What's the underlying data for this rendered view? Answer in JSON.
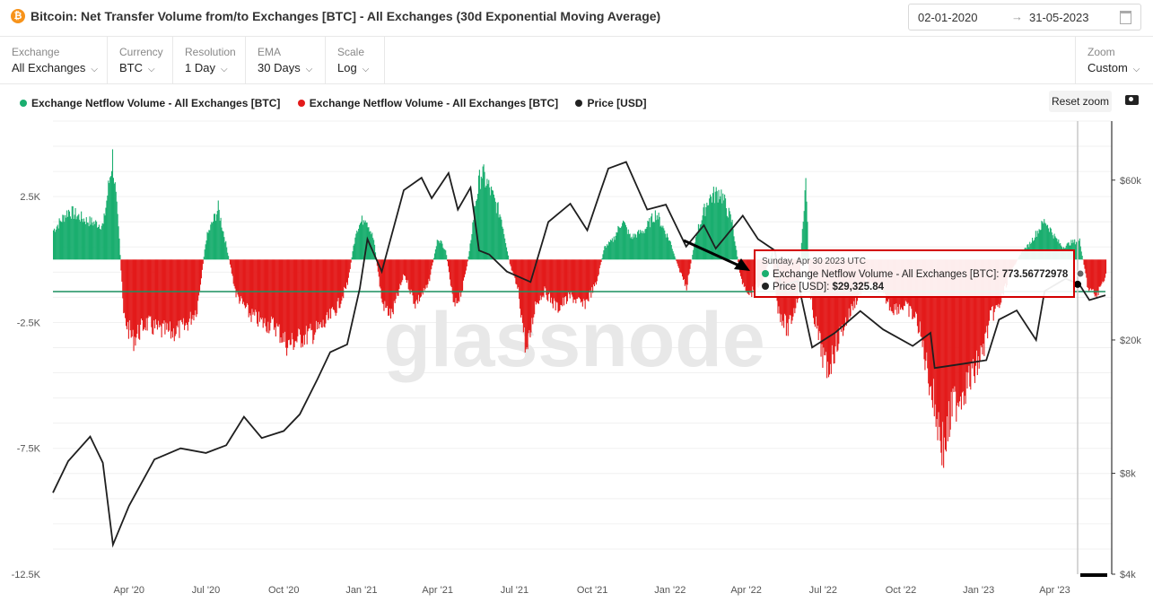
{
  "header": {
    "title": "Bitcoin: Net Transfer Volume from/to Exchanges [BTC] - All Exchanges (30d Exponential Moving Average)",
    "btc_glyph": "₿",
    "date_from": "02-01-2020",
    "date_to": "31-05-2023",
    "arrow": "→"
  },
  "controls": {
    "exchange": {
      "label": "Exchange",
      "value": "All Exchanges"
    },
    "currency": {
      "label": "Currency",
      "value": "BTC"
    },
    "resolution": {
      "label": "Resolution",
      "value": "1 Day"
    },
    "ema": {
      "label": "EMA",
      "value": "30 Days"
    },
    "scale": {
      "label": "Scale",
      "value": "Log"
    },
    "zoom": {
      "label": "Zoom",
      "value": "Custom"
    },
    "chevron": "⌵"
  },
  "legend": [
    {
      "label": "Exchange Netflow Volume - All Exchanges [BTC]",
      "color": "#1aae6f"
    },
    {
      "label": "Exchange Netflow Volume - All Exchanges [BTC]",
      "color": "#e31a1a"
    },
    {
      "label": "Price [USD]",
      "color": "#222222"
    }
  ],
  "toolbar": {
    "reset_zoom": "Reset zoom",
    "camera_icon": "camera-icon"
  },
  "watermark": "glassnode",
  "tooltip": {
    "date": "Sunday, Apr 30 2023 UTC",
    "netflow_label": "Exchange Netflow Volume - All Exchanges [BTC]:",
    "netflow_value": "773.56772978",
    "price_label": "Price [USD]:",
    "price_value": "$29,325.84",
    "border_color": "#d30000"
  },
  "chart_data": {
    "type": "bar",
    "x_ticks": [
      "Apr '20",
      "Jul '20",
      "Oct '20",
      "Jan '21",
      "Apr '21",
      "Jul '21",
      "Oct '21",
      "Jan '22",
      "Apr '22",
      "Jul '22",
      "Oct '22",
      "Jan '23",
      "Apr '23"
    ],
    "left_axis": {
      "ticks": [
        "2.5K",
        "-2.5K",
        "-7.5K",
        "-12.5K"
      ],
      "tick_values": [
        2500,
        -2500,
        -7500,
        -12500
      ],
      "range": [
        -12500,
        5500
      ]
    },
    "right_axis": {
      "scale": "log",
      "ticks": [
        "$60k",
        "$20k",
        "$8k",
        "$4k"
      ],
      "tick_values": [
        60000,
        20000,
        8000,
        4000
      ],
      "range": [
        4000,
        90000
      ]
    },
    "netflow": {
      "unit": "BTC",
      "positive_color": "#1aae6f",
      "negative_color": "#e31a1a",
      "points": [
        [
          "2020-01-02",
          1200
        ],
        [
          "2020-01-20",
          2000
        ],
        [
          "2020-02-10",
          1600
        ],
        [
          "2020-03-01",
          1400
        ],
        [
          "2020-03-12",
          4200
        ],
        [
          "2020-03-20",
          800
        ],
        [
          "2020-03-25",
          -2300
        ],
        [
          "2020-04-05",
          -3300
        ],
        [
          "2020-04-20",
          -2600
        ],
        [
          "2020-05-05",
          -2900
        ],
        [
          "2020-05-20",
          -3000
        ],
        [
          "2020-06-05",
          -2800
        ],
        [
          "2020-06-20",
          -2000
        ],
        [
          "2020-07-01",
          900
        ],
        [
          "2020-07-15",
          2100
        ],
        [
          "2020-07-25",
          500
        ],
        [
          "2020-08-05",
          -1400
        ],
        [
          "2020-08-20",
          -2200
        ],
        [
          "2020-09-05",
          -2600
        ],
        [
          "2020-09-20",
          -2700
        ],
        [
          "2020-10-05",
          -3500
        ],
        [
          "2020-10-20",
          -3200
        ],
        [
          "2020-11-05",
          -3000
        ],
        [
          "2020-11-20",
          -2600
        ],
        [
          "2020-12-05",
          -1800
        ],
        [
          "2020-12-15",
          -1000
        ],
        [
          "2020-12-25",
          1200
        ],
        [
          "2021-01-05",
          1800
        ],
        [
          "2021-01-15",
          800
        ],
        [
          "2021-01-25",
          -1800
        ],
        [
          "2021-02-05",
          -2300
        ],
        [
          "2021-02-20",
          -600
        ],
        [
          "2021-03-05",
          -1800
        ],
        [
          "2021-03-20",
          -1100
        ],
        [
          "2021-04-01",
          900
        ],
        [
          "2021-04-10",
          400
        ],
        [
          "2021-04-20",
          -2000
        ],
        [
          "2021-04-30",
          -1200
        ],
        [
          "2021-05-08",
          300
        ],
        [
          "2021-05-15",
          2300
        ],
        [
          "2021-05-22",
          3600
        ],
        [
          "2021-06-01",
          2900
        ],
        [
          "2021-06-15",
          1700
        ],
        [
          "2021-06-25",
          -200
        ],
        [
          "2021-07-05",
          -1300
        ],
        [
          "2021-07-15",
          -3900
        ],
        [
          "2021-07-25",
          -1800
        ],
        [
          "2021-08-05",
          -1300
        ],
        [
          "2021-08-20",
          -2000
        ],
        [
          "2021-09-05",
          -1500
        ],
        [
          "2021-09-20",
          -1900
        ],
        [
          "2021-10-05",
          -1000
        ],
        [
          "2021-10-15",
          500
        ],
        [
          "2021-10-25",
          800
        ],
        [
          "2021-11-05",
          1600
        ],
        [
          "2021-11-15",
          900
        ],
        [
          "2021-12-01",
          1200
        ],
        [
          "2021-12-15",
          1900
        ],
        [
          "2022-01-01",
          700
        ],
        [
          "2022-01-10",
          -300
        ],
        [
          "2022-01-20",
          -1100
        ],
        [
          "2022-02-01",
          1100
        ],
        [
          "2022-02-15",
          2500
        ],
        [
          "2022-03-01",
          2800
        ],
        [
          "2022-03-15",
          1500
        ],
        [
          "2022-03-25",
          -800
        ],
        [
          "2022-04-05",
          -1400
        ],
        [
          "2022-04-20",
          -900
        ],
        [
          "2022-05-01",
          300
        ],
        [
          "2022-05-08",
          -2000
        ],
        [
          "2022-05-20",
          -2900
        ],
        [
          "2022-06-01",
          -1500
        ],
        [
          "2022-06-10",
          3300
        ],
        [
          "2022-06-15",
          -1500
        ],
        [
          "2022-06-25",
          -3200
        ],
        [
          "2022-07-05",
          -4600
        ],
        [
          "2022-07-20",
          -3100
        ],
        [
          "2022-08-05",
          -1900
        ],
        [
          "2022-08-20",
          -900
        ],
        [
          "2022-09-05",
          -1200
        ],
        [
          "2022-09-20",
          -2000
        ],
        [
          "2022-10-05",
          -1900
        ],
        [
          "2022-10-20",
          -2500
        ],
        [
          "2022-11-01",
          -4500
        ],
        [
          "2022-11-10",
          -6100
        ],
        [
          "2022-11-20",
          -7800
        ],
        [
          "2022-12-01",
          -6000
        ],
        [
          "2022-12-15",
          -5200
        ],
        [
          "2022-12-25",
          -4700
        ],
        [
          "2023-01-05",
          -3800
        ],
        [
          "2023-01-15",
          -2300
        ],
        [
          "2023-01-25",
          -1900
        ],
        [
          "2023-02-05",
          -700
        ],
        [
          "2023-02-20",
          300
        ],
        [
          "2023-03-01",
          600
        ],
        [
          "2023-03-10",
          1100
        ],
        [
          "2023-03-20",
          1600
        ],
        [
          "2023-04-01",
          900
        ],
        [
          "2023-04-10",
          500
        ],
        [
          "2023-04-20",
          700
        ],
        [
          "2023-04-30",
          773.57
        ],
        [
          "2023-05-10",
          -1200
        ],
        [
          "2023-05-20",
          -1500
        ],
        [
          "2023-05-31",
          -600
        ]
      ]
    },
    "price": {
      "unit": "USD",
      "color": "#222222",
      "points": [
        [
          "2020-01-02",
          7000
        ],
        [
          "2020-01-20",
          8700
        ],
        [
          "2020-02-15",
          10300
        ],
        [
          "2020-03-01",
          8600
        ],
        [
          "2020-03-13",
          4900
        ],
        [
          "2020-04-01",
          6400
        ],
        [
          "2020-05-01",
          8800
        ],
        [
          "2020-06-01",
          9500
        ],
        [
          "2020-07-01",
          9200
        ],
        [
          "2020-07-25",
          9700
        ],
        [
          "2020-08-15",
          11800
        ],
        [
          "2020-09-05",
          10200
        ],
        [
          "2020-10-01",
          10700
        ],
        [
          "2020-10-20",
          12000
        ],
        [
          "2020-11-10",
          15300
        ],
        [
          "2020-11-25",
          18400
        ],
        [
          "2020-12-15",
          19400
        ],
        [
          "2020-12-30",
          28500
        ],
        [
          "2021-01-08",
          40000
        ],
        [
          "2021-01-25",
          32000
        ],
        [
          "2021-02-20",
          56000
        ],
        [
          "2021-03-13",
          61000
        ],
        [
          "2021-03-25",
          53000
        ],
        [
          "2021-04-14",
          63000
        ],
        [
          "2021-04-25",
          49000
        ],
        [
          "2021-05-10",
          57000
        ],
        [
          "2021-05-20",
          37000
        ],
        [
          "2021-06-01",
          36000
        ],
        [
          "2021-06-22",
          32000
        ],
        [
          "2021-07-20",
          29800
        ],
        [
          "2021-08-10",
          45000
        ],
        [
          "2021-09-05",
          51000
        ],
        [
          "2021-09-25",
          42500
        ],
        [
          "2021-10-10",
          55000
        ],
        [
          "2021-10-20",
          65000
        ],
        [
          "2021-11-10",
          68000
        ],
        [
          "2021-12-05",
          49000
        ],
        [
          "2021-12-27",
          50700
        ],
        [
          "2022-01-20",
          38000
        ],
        [
          "2022-02-10",
          44000
        ],
        [
          "2022-02-24",
          37500
        ],
        [
          "2022-03-28",
          47000
        ],
        [
          "2022-04-15",
          40000
        ],
        [
          "2022-05-05",
          37000
        ],
        [
          "2022-05-12",
          29000
        ],
        [
          "2022-06-01",
          30000
        ],
        [
          "2022-06-18",
          19000
        ],
        [
          "2022-07-15",
          21000
        ],
        [
          "2022-08-14",
          24400
        ],
        [
          "2022-09-10",
          21500
        ],
        [
          "2022-10-15",
          19200
        ],
        [
          "2022-11-05",
          21000
        ],
        [
          "2022-11-10",
          16500
        ],
        [
          "2022-12-15",
          17000
        ],
        [
          "2023-01-10",
          17400
        ],
        [
          "2023-01-25",
          23000
        ],
        [
          "2023-02-15",
          24500
        ],
        [
          "2023-03-10",
          20000
        ],
        [
          "2023-03-20",
          28000
        ],
        [
          "2023-04-14",
          30500
        ],
        [
          "2023-04-30",
          29325.84
        ],
        [
          "2023-05-12",
          26300
        ],
        [
          "2023-05-31",
          27200
        ]
      ]
    }
  }
}
